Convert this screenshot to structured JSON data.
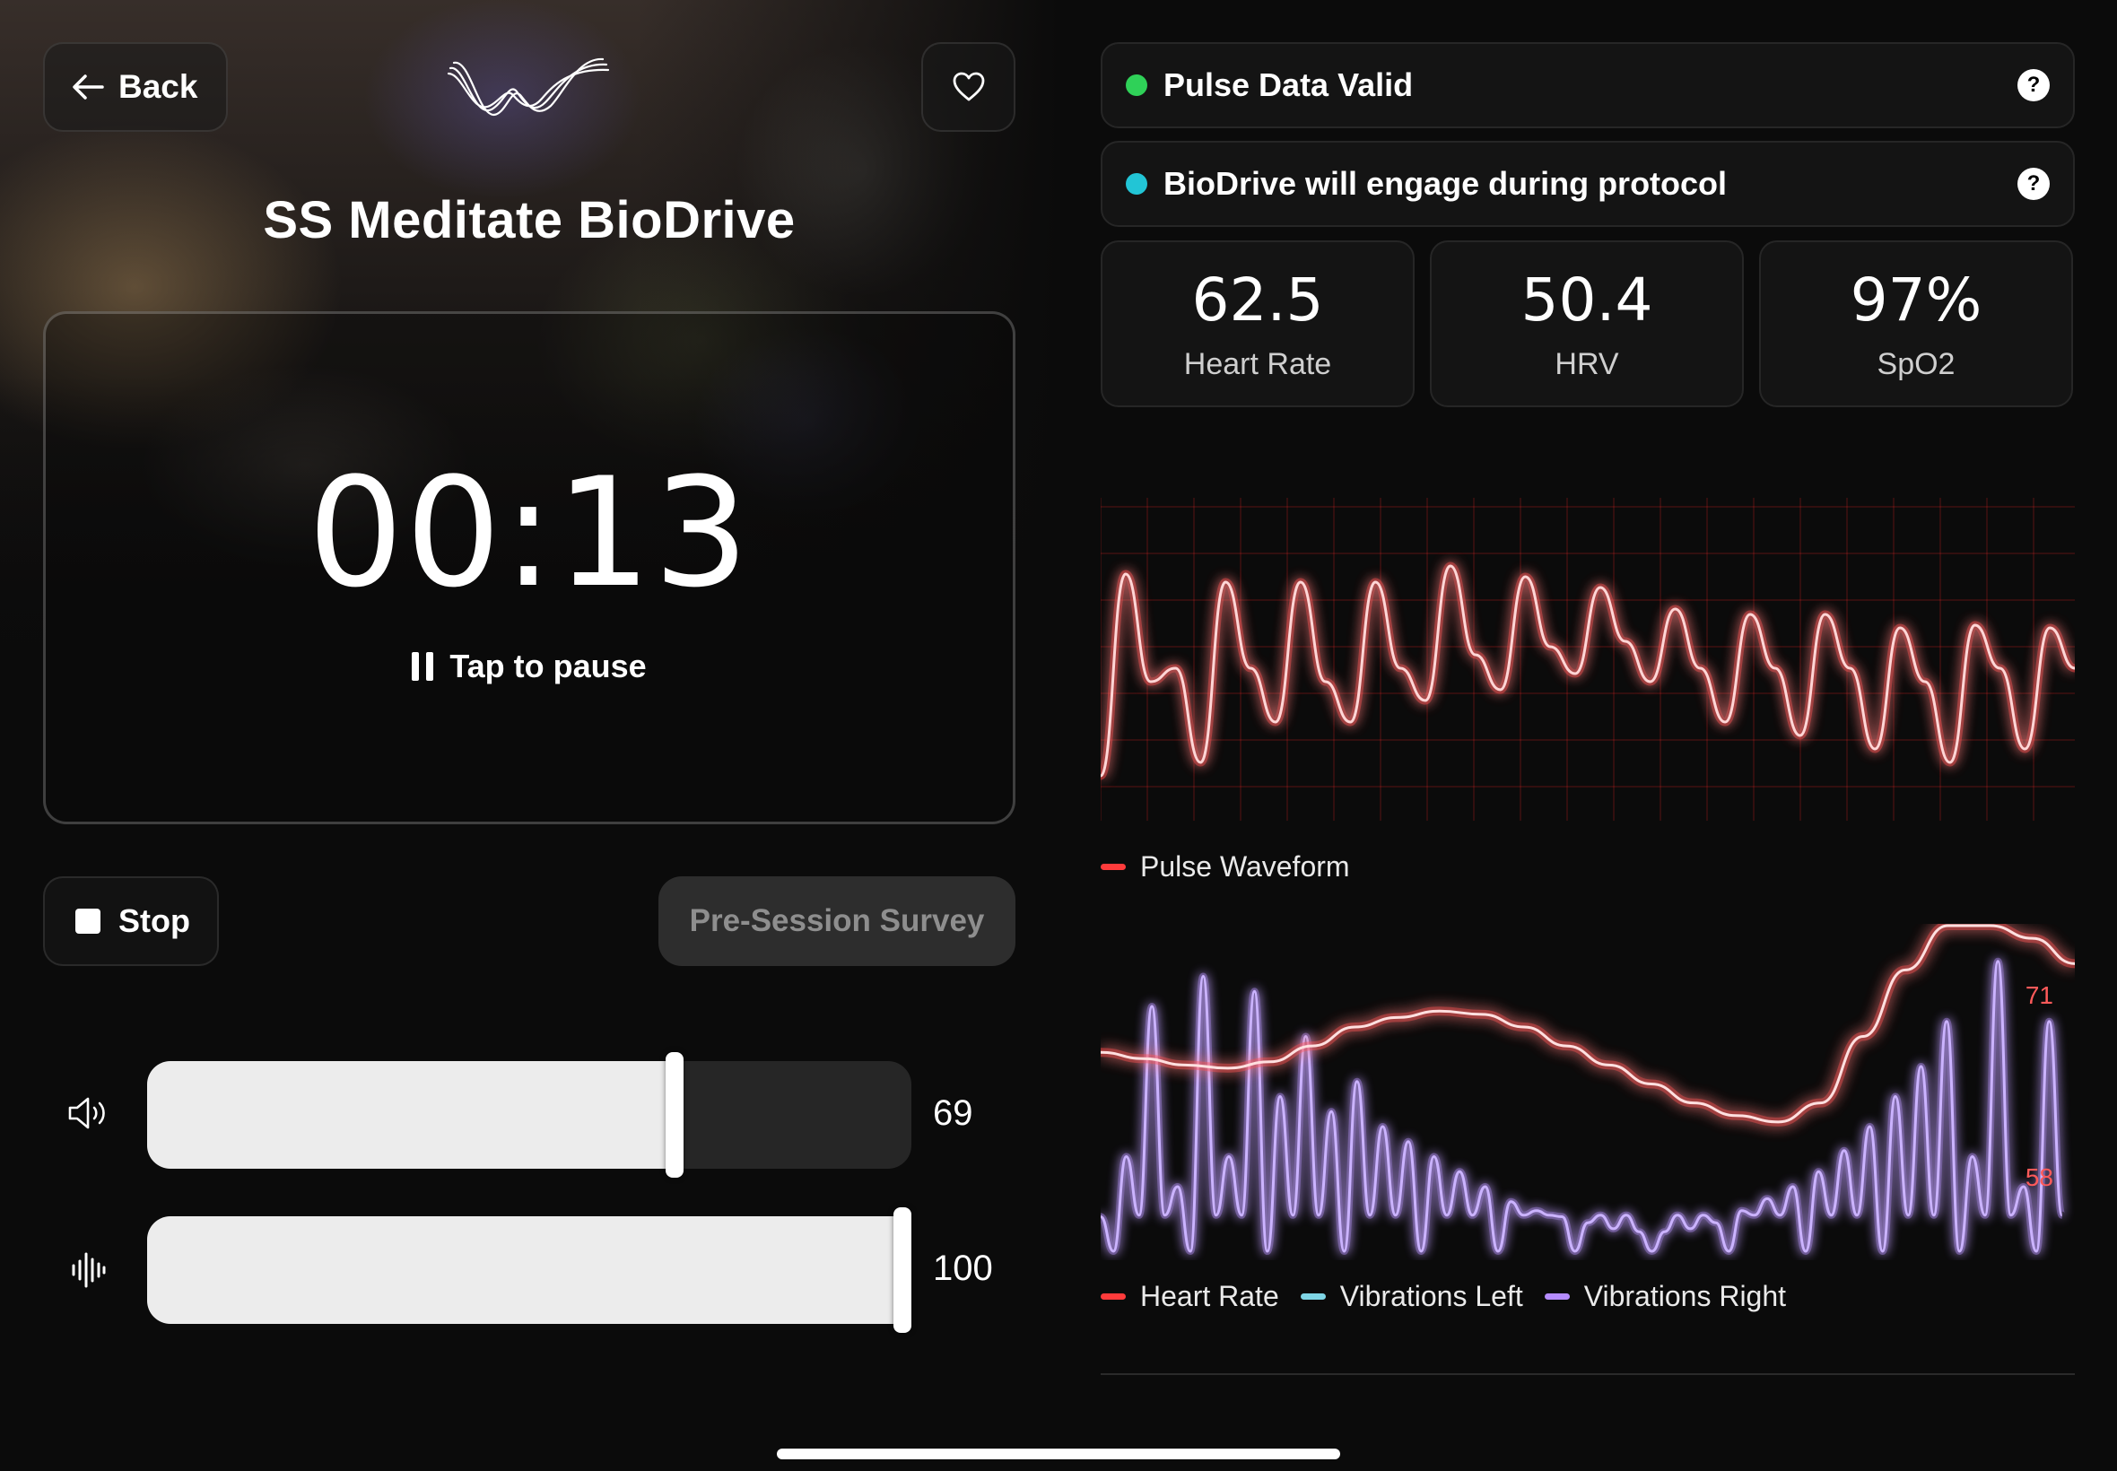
{
  "header": {
    "back_label": "Back",
    "title": "SS Meditate BioDrive"
  },
  "timer": {
    "elapsed": "00:13",
    "hint": "Tap to pause"
  },
  "actions": {
    "stop_label": "Stop",
    "survey_label": "Pre-Session Survey"
  },
  "sliders": {
    "volume": {
      "icon": "speaker-icon",
      "value": 69,
      "value_label": "69"
    },
    "vibration": {
      "icon": "waveform-icon",
      "value": 100,
      "value_label": "100"
    }
  },
  "status": [
    {
      "text": "Pulse Data Valid",
      "color": "#2fd158"
    },
    {
      "text": "BioDrive will engage during protocol",
      "color": "#22c5d6"
    }
  ],
  "metrics": [
    {
      "value": "62.5",
      "label": "Heart Rate"
    },
    {
      "value": "50.4",
      "label": "HRV"
    },
    {
      "value": "97%",
      "label": "SpO2"
    }
  ],
  "colors": {
    "pulse": "#ff3b3b",
    "heart_rate": "#ff3b3b",
    "vibrations_left": "#7fd6e6",
    "vibrations_right": "#b58cff"
  },
  "chart_data": [
    {
      "type": "line",
      "series": [
        {
          "name": "Pulse Waveform",
          "values": [
            0.1,
            0.85,
            0.45,
            0.5,
            0.15,
            0.82,
            0.5,
            0.3,
            0.82,
            0.45,
            0.3,
            0.82,
            0.5,
            0.38,
            0.88,
            0.55,
            0.42,
            0.84,
            0.58,
            0.48,
            0.8,
            0.6,
            0.45,
            0.72,
            0.5,
            0.3,
            0.7,
            0.5,
            0.25,
            0.7,
            0.5,
            0.2,
            0.65,
            0.45,
            0.15,
            0.66,
            0.5,
            0.2,
            0.65,
            0.5
          ]
        }
      ]
    },
    {
      "type": "line",
      "series": [
        {
          "name": "Heart Rate",
          "values": [
            0.6,
            0.58,
            0.56,
            0.55,
            0.57,
            0.62,
            0.68,
            0.71,
            0.73,
            0.72,
            0.68,
            0.62,
            0.56,
            0.5,
            0.44,
            0.4,
            0.38,
            0.44,
            0.65,
            0.86,
            1.0,
            1.0,
            0.96,
            0.88
          ],
          "end_label": "71"
        },
        {
          "name": "Vibrations Left",
          "values": []
        },
        {
          "name": "Vibrations Right",
          "end_label": "58",
          "peaks": [
            0.1,
            0.3,
            0.8,
            0.2,
            0.9,
            0.3,
            0.85,
            0.5,
            0.7,
            0.45,
            0.55,
            0.4,
            0.35,
            0.3,
            0.25,
            0.2,
            0.15,
            0.12,
            0.1,
            0.08,
            0.06,
            0.05,
            0.05,
            0.06,
            0.08,
            0.12,
            0.16,
            0.2,
            0.25,
            0.32,
            0.4,
            0.5,
            0.6,
            0.75,
            0.3,
            0.95,
            0.2,
            0.75
          ]
        }
      ]
    }
  ]
}
